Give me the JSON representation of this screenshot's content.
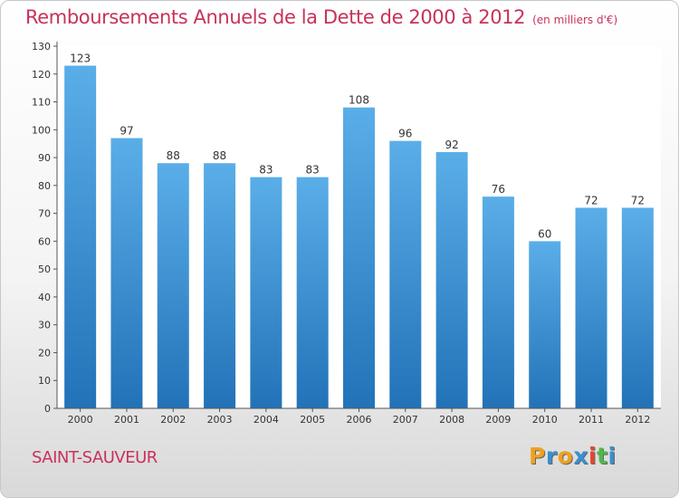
{
  "header": {
    "title": "Remboursements Annuels de la Dette de 2000 à 2012",
    "unit": "(en milliers d'€)"
  },
  "footer": {
    "town": "SAINT-SAUVEUR",
    "brand": "Proxiti",
    "brand_colors": [
      "#f0a020",
      "#3a8fd0",
      "#f0a020",
      "#3a8fd0",
      "#e8452c",
      "#50b848",
      "#3a8fd0"
    ]
  },
  "chart_data": {
    "type": "bar",
    "title": "Remboursements Annuels de la Dette de 2000 à 2012",
    "categories": [
      "2000",
      "2001",
      "2002",
      "2003",
      "2004",
      "2005",
      "2006",
      "2007",
      "2008",
      "2009",
      "2010",
      "2011",
      "2012"
    ],
    "values": [
      123,
      97,
      88,
      88,
      83,
      83,
      108,
      96,
      92,
      76,
      60,
      72,
      72
    ],
    "ylim": [
      0,
      130
    ],
    "yticks": [
      0,
      10,
      20,
      30,
      40,
      50,
      60,
      70,
      80,
      90,
      100,
      110,
      120,
      130
    ],
    "grid": false,
    "bar_color_top": "#5aaee8",
    "bar_color_bottom": "#2272b8"
  }
}
